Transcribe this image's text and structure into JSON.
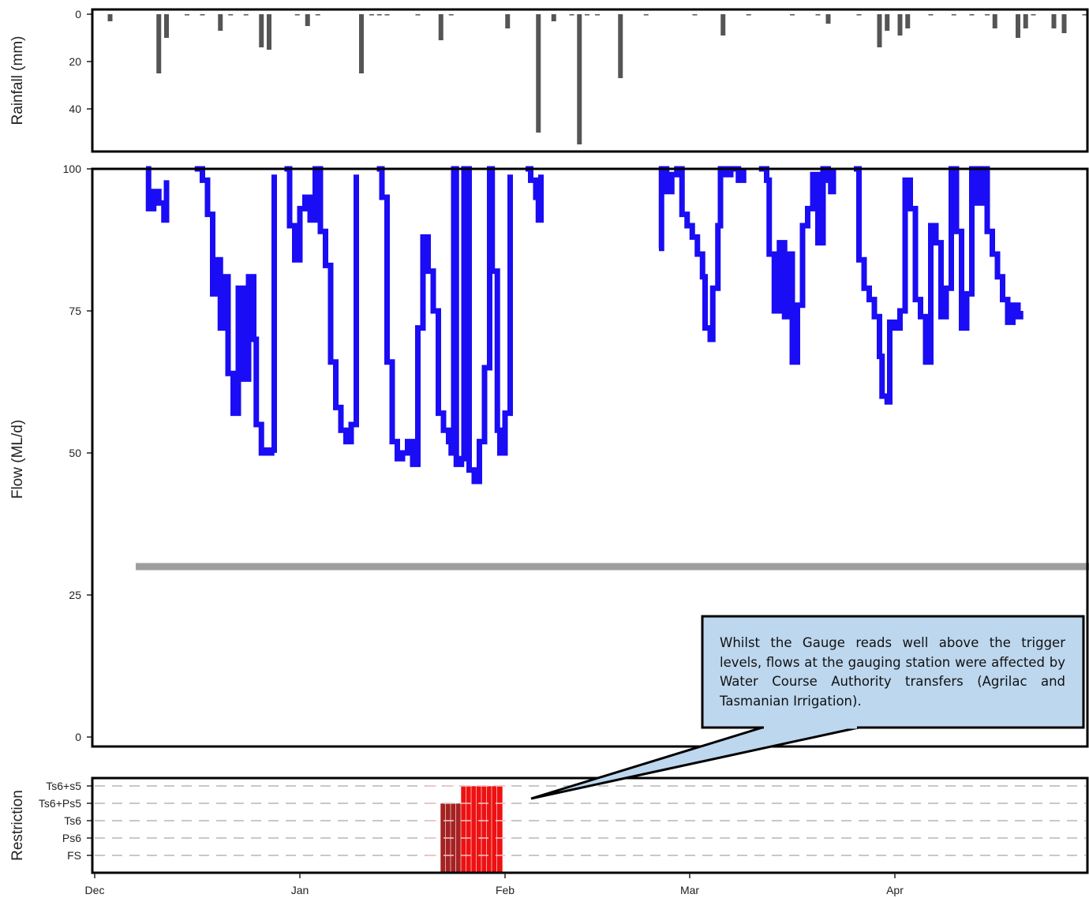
{
  "chart_data": [
    {
      "panel": "rainfall",
      "type": "bar",
      "ylabel": "Rainfall (mm)",
      "yticks": [
        0,
        20,
        40
      ],
      "ylim": [
        0,
        55
      ],
      "axis_inverted": true,
      "bar_color": "#555555",
      "x_unit": "days since 1 Dec",
      "bars": [
        {
          "x": 3,
          "y": 3
        },
        {
          "x": 12.5,
          "y": 25
        },
        {
          "x": 14,
          "y": 10
        },
        {
          "x": 18,
          "y": 0.5
        },
        {
          "x": 21,
          "y": 0.5
        },
        {
          "x": 24.5,
          "y": 7
        },
        {
          "x": 26.5,
          "y": 0.5
        },
        {
          "x": 29.5,
          "y": 0.5
        },
        {
          "x": 32.5,
          "y": 14
        },
        {
          "x": 34,
          "y": 15
        },
        {
          "x": 39.5,
          "y": 0.5
        },
        {
          "x": 41.5,
          "y": 5
        },
        {
          "x": 43.5,
          "y": 0.5
        },
        {
          "x": 52,
          "y": 25
        },
        {
          "x": 54,
          "y": 0.5
        },
        {
          "x": 55.5,
          "y": 0.5
        },
        {
          "x": 57,
          "y": 0.5
        },
        {
          "x": 63,
          "y": 0.5
        },
        {
          "x": 67.5,
          "y": 11
        },
        {
          "x": 69.5,
          "y": 0.5
        },
        {
          "x": 80.5,
          "y": 6
        },
        {
          "x": 86.5,
          "y": 50
        },
        {
          "x": 89.5,
          "y": 3
        },
        {
          "x": 93,
          "y": 0.5
        },
        {
          "x": 94.5,
          "y": 55
        },
        {
          "x": 96,
          "y": 0.5
        },
        {
          "x": 98,
          "y": 0.5
        },
        {
          "x": 102.5,
          "y": 27
        },
        {
          "x": 107.5,
          "y": 0.5
        },
        {
          "x": 117,
          "y": 0.5
        },
        {
          "x": 122.5,
          "y": 9
        },
        {
          "x": 127.5,
          "y": 0.5
        },
        {
          "x": 136,
          "y": 0.5
        },
        {
          "x": 141,
          "y": 0.5
        },
        {
          "x": 143,
          "y": 4
        },
        {
          "x": 149,
          "y": 0.5
        },
        {
          "x": 153,
          "y": 14
        },
        {
          "x": 154.5,
          "y": 7
        },
        {
          "x": 157,
          "y": 9
        },
        {
          "x": 158.5,
          "y": 6
        },
        {
          "x": 163,
          "y": 0.5
        },
        {
          "x": 167.5,
          "y": 0.5
        },
        {
          "x": 171,
          "y": 0.5
        },
        {
          "x": 174,
          "y": 0.5
        },
        {
          "x": 175.5,
          "y": 6
        },
        {
          "x": 180,
          "y": 10
        },
        {
          "x": 181.5,
          "y": 6
        },
        {
          "x": 183,
          "y": 0.5
        },
        {
          "x": 187,
          "y": 6
        },
        {
          "x": 189,
          "y": 8
        },
        {
          "x": 193,
          "y": 0.5
        }
      ]
    },
    {
      "panel": "flow",
      "type": "line",
      "ylabel": "Flow (ML/d)",
      "yticks": [
        0,
        25,
        50,
        75,
        100
      ],
      "ylim": [
        0,
        100
      ],
      "line_color": "#1a0cf4",
      "x_unit": "days since 1 Dec",
      "series": [
        {
          "segment": 1,
          "points": [
            [
              10,
              100
            ],
            [
              10.5,
              93
            ],
            [
              11.5,
              96
            ],
            [
              12.5,
              94
            ],
            [
              13.5,
              91
            ],
            [
              14,
              98
            ]
          ]
        },
        {
          "segment": 2,
          "points": [
            [
              19.5,
              100
            ],
            [
              21,
              98
            ],
            [
              22,
              92
            ],
            [
              23,
              78
            ],
            [
              24,
              84
            ],
            [
              24.5,
              72
            ],
            [
              25.5,
              81
            ],
            [
              26,
              64
            ],
            [
              27,
              57
            ],
            [
              28,
              79
            ],
            [
              29,
              63
            ],
            [
              30,
              81
            ],
            [
              31,
              70
            ],
            [
              31.5,
              55
            ],
            [
              32.5,
              50
            ],
            [
              33,
              50.5
            ],
            [
              34,
              50
            ],
            [
              34.5,
              50.5
            ],
            [
              35,
              99
            ]
          ]
        },
        {
          "segment": 3,
          "points": [
            [
              37,
              100
            ],
            [
              38,
              90
            ],
            [
              39,
              84
            ],
            [
              40,
              93
            ],
            [
              41,
              95
            ],
            [
              42,
              91
            ],
            [
              43,
              100
            ],
            [
              44,
              89
            ],
            [
              45,
              83
            ],
            [
              46,
              66
            ],
            [
              47,
              58
            ],
            [
              48,
              54
            ],
            [
              49,
              52
            ],
            [
              50,
              55
            ],
            [
              51,
              99
            ]
          ]
        },
        {
          "segment": 4,
          "points": [
            [
              55,
              100
            ],
            [
              56,
              95
            ],
            [
              57,
              66
            ],
            [
              58,
              52
            ],
            [
              59,
              49
            ],
            [
              60,
              50
            ],
            [
              61,
              52
            ],
            [
              62,
              48
            ],
            [
              63,
              72
            ],
            [
              64,
              88
            ],
            [
              65,
              82
            ],
            [
              66,
              75
            ],
            [
              67,
              57
            ],
            [
              68,
              54
            ],
            [
              69,
              52
            ],
            [
              69.5,
              50
            ],
            [
              70,
              100
            ],
            [
              70.5,
              48
            ],
            [
              71.5,
              49
            ],
            [
              72,
              100
            ],
            [
              73,
              47
            ],
            [
              74,
              45
            ],
            [
              75,
              52
            ],
            [
              76,
              65
            ],
            [
              77,
              100
            ],
            [
              77.5,
              82
            ],
            [
              78.5,
              54
            ],
            [
              79,
              50
            ],
            [
              80,
              57
            ],
            [
              81,
              99
            ]
          ]
        },
        {
          "segment": 5,
          "points": [
            [
              84,
              100
            ],
            [
              85,
              98
            ],
            [
              86,
              95
            ],
            [
              86.5,
              91
            ],
            [
              87,
              99
            ]
          ]
        },
        {
          "segment": 6,
          "points": [
            [
              110,
              86
            ],
            [
              110.5,
              100
            ],
            [
              111.5,
              96
            ],
            [
              112.5,
              99
            ],
            [
              113.5,
              100
            ],
            [
              114.5,
              92
            ],
            [
              115.5,
              90
            ],
            [
              116.5,
              88
            ],
            [
              117.5,
              85
            ],
            [
              118.5,
              81
            ],
            [
              119,
              72
            ],
            [
              120,
              70
            ],
            [
              120.5,
              79
            ],
            [
              121.5,
              90
            ],
            [
              122,
              100
            ],
            [
              123,
              99
            ],
            [
              124,
              100
            ],
            [
              125.5,
              98
            ],
            [
              126.5,
              100
            ]
          ]
        },
        {
          "segment": 7,
          "points": [
            [
              129.5,
              100
            ],
            [
              131,
              98
            ],
            [
              131.5,
              85
            ],
            [
              132.5,
              75
            ],
            [
              133.5,
              87
            ],
            [
              134.5,
              74
            ],
            [
              135.5,
              85
            ],
            [
              136,
              66
            ],
            [
              137,
              76
            ],
            [
              138,
              90
            ],
            [
              139,
              93
            ],
            [
              140,
              99
            ],
            [
              141,
              87
            ],
            [
              142,
              100
            ],
            [
              143,
              98
            ],
            [
              143.5,
              96
            ],
            [
              144,
              100
            ]
          ]
        },
        {
          "segment": 8,
          "points": [
            [
              148,
              100
            ],
            [
              149,
              84
            ],
            [
              150,
              79
            ],
            [
              151,
              77
            ],
            [
              152,
              74
            ],
            [
              153,
              67
            ],
            [
              153.5,
              60
            ],
            [
              154.5,
              59
            ],
            [
              155,
              73
            ],
            [
              156,
              72
            ],
            [
              157,
              75
            ],
            [
              158,
              98
            ],
            [
              159,
              93
            ],
            [
              160,
              77
            ],
            [
              161,
              74
            ],
            [
              162,
              66
            ],
            [
              163,
              90
            ],
            [
              164,
              87
            ],
            [
              165,
              74
            ],
            [
              166,
              79
            ],
            [
              167,
              100
            ],
            [
              168,
              89
            ],
            [
              169,
              72
            ],
            [
              170,
              78
            ],
            [
              171,
              100
            ],
            [
              172,
              94
            ],
            [
              173,
              100
            ],
            [
              174,
              89
            ],
            [
              175,
              85
            ],
            [
              176,
              81
            ],
            [
              177,
              77
            ],
            [
              178,
              73
            ],
            [
              179,
              76
            ],
            [
              180,
              74
            ],
            [
              180.5,
              75
            ]
          ]
        }
      ]
    },
    {
      "panel": "flow_threshold",
      "type": "line",
      "color": "#9e9e9e",
      "y": 30,
      "x_range": [
        8,
        194
      ]
    },
    {
      "panel": "restriction",
      "type": "bar",
      "ylabel": "Restriction",
      "categories": [
        "FS",
        "Ps6",
        "Ts6",
        "Ts6+Ps5",
        "Ts6+s5"
      ],
      "grid": "dashed",
      "x_unit": "days since 1 Dec",
      "bars": [
        {
          "x": 68,
          "level": "Ts6+Ps5",
          "color": "#a52222"
        },
        {
          "x": 69,
          "level": "Ts6+Ps5",
          "color": "#a52222"
        },
        {
          "x": 70,
          "level": "Ts6+Ps5",
          "color": "#a52222"
        },
        {
          "x": 71,
          "level": "Ts6+Ps5",
          "color": "#a52222"
        },
        {
          "x": 72,
          "level": "Ts6+s5",
          "color": "#ee1111"
        },
        {
          "x": 73,
          "level": "Ts6+s5",
          "color": "#ee1111"
        },
        {
          "x": 74,
          "level": "Ts6+s5",
          "color": "#ee1111"
        },
        {
          "x": 75,
          "level": "Ts6+s5",
          "color": "#ee1111"
        },
        {
          "x": 76,
          "level": "Ts6+s5",
          "color": "#ee1111"
        },
        {
          "x": 77,
          "level": "Ts6+s5",
          "color": "#ee1111"
        },
        {
          "x": 78,
          "level": "Ts6+s5",
          "color": "#ee1111"
        },
        {
          "x": 79,
          "level": "Ts6+s5",
          "color": "#ee1111"
        }
      ]
    }
  ],
  "x_axis": {
    "ticks": [
      {
        "label": "Dec",
        "x": 0
      },
      {
        "label": "Jan",
        "x": 40
      },
      {
        "label": "Feb",
        "x": 80
      },
      {
        "label": "Mar",
        "x": 116
      },
      {
        "label": "Apr",
        "x": 156
      }
    ]
  },
  "annotation": {
    "text": "Whilst the Gauge reads well above the trigger levels,  flows at the gauging station were affected by Water Course Authority transfers (Agrilac and Tasmanian Irrigation).",
    "box_fill": "#bdd7ee",
    "box_border": "#000000"
  }
}
